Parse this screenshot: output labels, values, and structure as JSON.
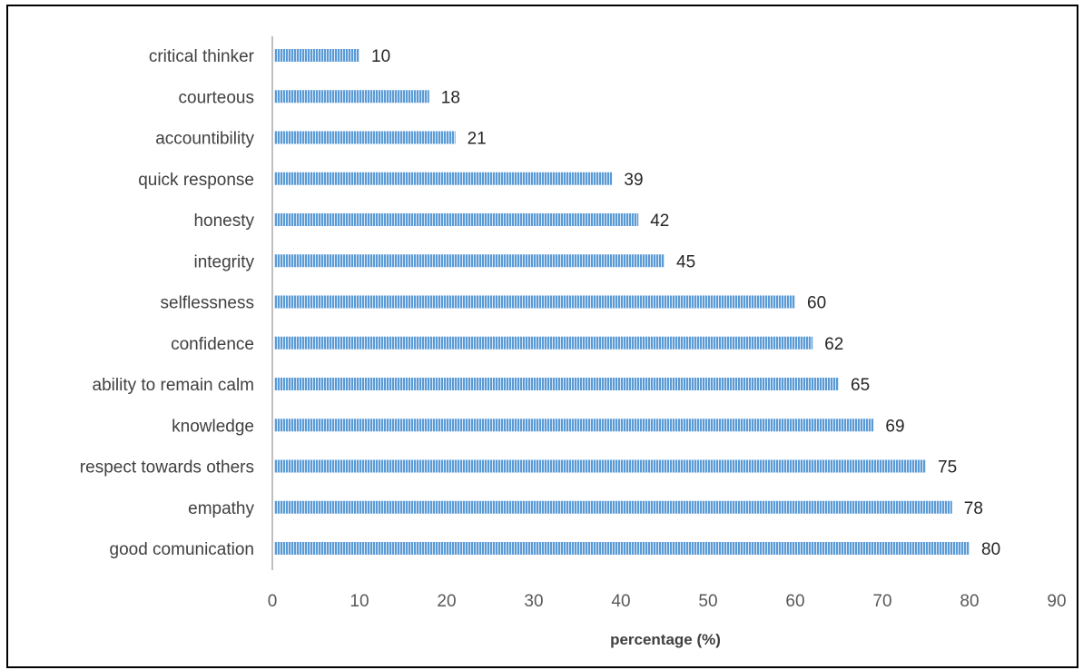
{
  "chart_data": {
    "type": "bar",
    "orientation": "horizontal",
    "categories": [
      "good comunication",
      "empathy",
      "respect towards others",
      "knowledge",
      "ability to remain calm",
      "confidence",
      "selflessness",
      "integrity",
      "honesty",
      "quick response",
      "accountibility",
      "courteous",
      "critical thinker"
    ],
    "values": [
      80,
      78,
      75,
      69,
      65,
      62,
      60,
      45,
      42,
      39,
      21,
      18,
      10
    ],
    "value_labels": [
      "80",
      "78",
      "75",
      "69",
      "65",
      "62",
      "60",
      "45",
      "42",
      "39",
      "21",
      "18",
      "10"
    ],
    "xlabel": "percentage (%)",
    "ylabel": "",
    "xlim": [
      0,
      90
    ],
    "xticks": [
      "0",
      "10",
      "20",
      "30",
      "40",
      "50",
      "60",
      "70",
      "80",
      "90"
    ],
    "grid": false,
    "legend": "none",
    "bar_color": "#5b9bd5",
    "bar_stripe_color": "#d6e6f7",
    "axis_color": "#bfbfbf"
  }
}
